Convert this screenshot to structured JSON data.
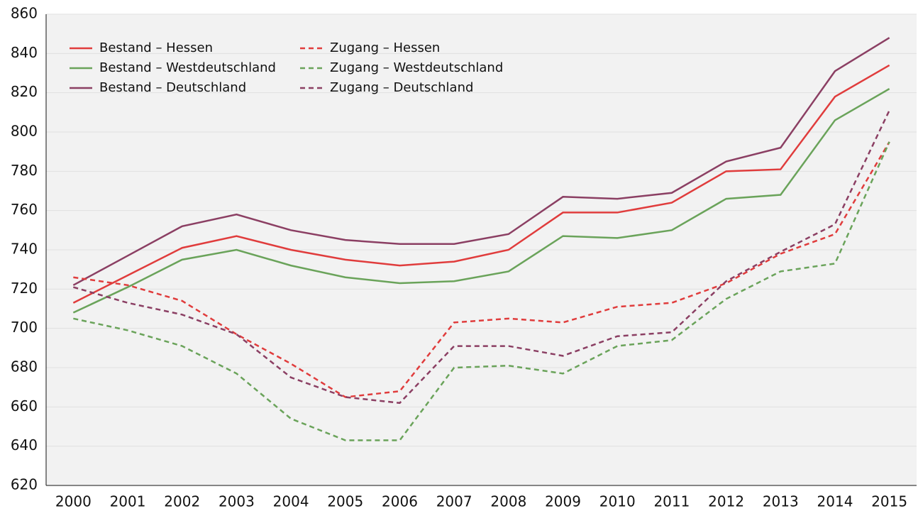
{
  "chart_data": {
    "type": "line",
    "categories": [
      "2000",
      "2001",
      "2002",
      "2003",
      "2004",
      "2005",
      "2006",
      "2007",
      "2008",
      "2009",
      "2010",
      "2011",
      "2012",
      "2013",
      "2014",
      "2015"
    ],
    "series": [
      {
        "name": "Bestand – Hessen",
        "color": "#e03c3c",
        "dashed": false,
        "values": [
          713,
          727,
          741,
          747,
          740,
          735,
          732,
          734,
          740,
          759,
          759,
          764,
          780,
          781,
          818,
          834
        ]
      },
      {
        "name": "Bestand – Westdeutschland",
        "color": "#6aa35a",
        "dashed": false,
        "values": [
          708,
          721,
          735,
          740,
          732,
          726,
          723,
          724,
          729,
          747,
          746,
          750,
          766,
          768,
          806,
          822
        ]
      },
      {
        "name": "Bestand – Deutschland",
        "color": "#8b3f63",
        "dashed": false,
        "values": [
          722,
          737,
          752,
          758,
          750,
          745,
          743,
          743,
          748,
          767,
          766,
          769,
          785,
          792,
          831,
          848
        ]
      },
      {
        "name": "Zugang – Hessen",
        "color": "#e03c3c",
        "dashed": true,
        "values": [
          726,
          722,
          714,
          697,
          682,
          665,
          668,
          703,
          705,
          703,
          711,
          713,
          723,
          738,
          748,
          795
        ]
      },
      {
        "name": "Zugang – Westdeutschland",
        "color": "#6aa35a",
        "dashed": true,
        "values": [
          705,
          699,
          691,
          677,
          654,
          643,
          643,
          680,
          681,
          677,
          691,
          694,
          715,
          729,
          733,
          795
        ]
      },
      {
        "name": "Zugang – Deutschland",
        "color": "#8b3f63",
        "dashed": true,
        "values": [
          721,
          713,
          707,
          697,
          675,
          665,
          662,
          691,
          691,
          686,
          696,
          698,
          724,
          739,
          753,
          811
        ]
      }
    ],
    "ylim": [
      620,
      860
    ],
    "yticks": [
      620,
      640,
      660,
      680,
      700,
      720,
      740,
      760,
      780,
      800,
      820,
      840,
      860
    ],
    "grid": true,
    "legend": "top-left"
  }
}
